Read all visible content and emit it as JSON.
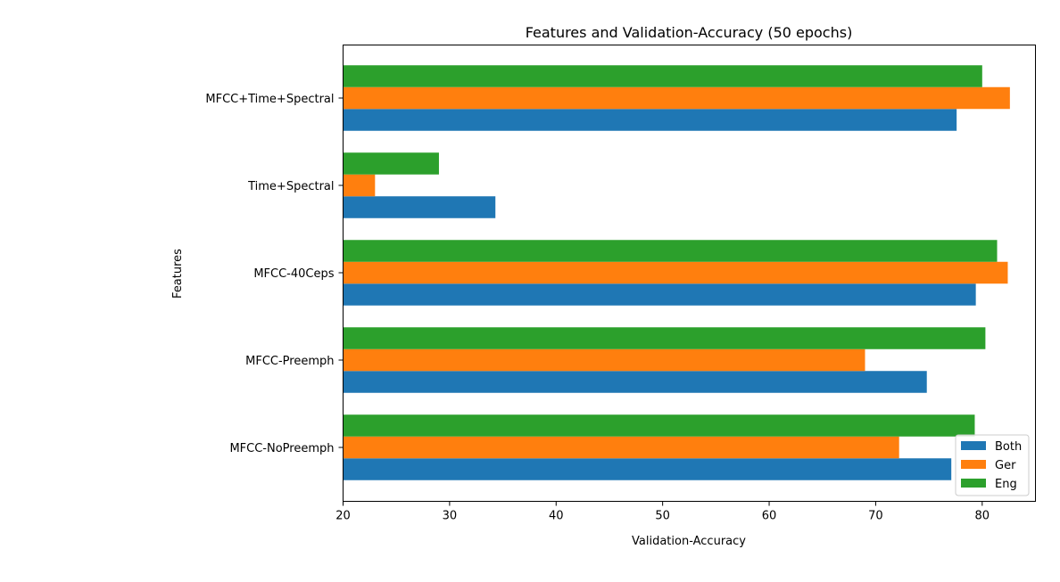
{
  "chart_data": {
    "type": "bar",
    "orientation": "horizontal",
    "title": "Features and Validation-Accuracy (50 epochs)",
    "xlabel": "Validation-Accuracy",
    "ylabel": "Features",
    "xlim": [
      20,
      85
    ],
    "xticks": [
      "20",
      "30",
      "40",
      "50",
      "60",
      "70",
      "80"
    ],
    "categories": [
      "MFCC-NoPreemph",
      "MFCC-Preemph",
      "MFCC-40Ceps",
      "Time+Spectral",
      "MFCC+Time+Spectral"
    ],
    "series": [
      {
        "name": "Both",
        "color": "#1f77b4",
        "values": [
          77.1,
          74.8,
          79.4,
          34.3,
          77.6
        ]
      },
      {
        "name": "Ger",
        "color": "#ff7f0e",
        "values": [
          72.2,
          69.0,
          82.4,
          23.0,
          82.6
        ]
      },
      {
        "name": "Eng",
        "color": "#2ca02c",
        "values": [
          79.3,
          80.3,
          81.4,
          29.0,
          80.0
        ]
      }
    ],
    "legend_position": "lower-right",
    "grid": false
  }
}
